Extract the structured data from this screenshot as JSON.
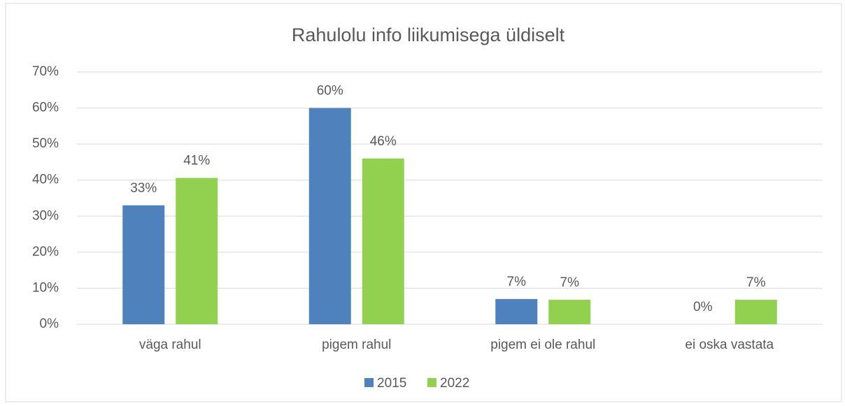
{
  "chart_data": {
    "type": "bar",
    "title": "Rahulolu info liikumisega üldiselt",
    "categories": [
      "väga rahul",
      "pigem rahul",
      "pigem ei ole rahul",
      "ei oska vastata"
    ],
    "series": [
      {
        "name": "2015",
        "color": "#4f81bd",
        "values": [
          33,
          60,
          7,
          0
        ],
        "value_labels": [
          "33%",
          "60%",
          "7%",
          "0%"
        ]
      },
      {
        "name": "2022",
        "color": "#92d050",
        "values": [
          40.6,
          46,
          6.8,
          6.8
        ],
        "value_labels": [
          "41%",
          "46%",
          "7%",
          "7%"
        ]
      }
    ],
    "ylim": [
      0,
      70
    ],
    "yticks": [
      {
        "value": 0,
        "label": "0%"
      },
      {
        "value": 10,
        "label": "10%"
      },
      {
        "value": 20,
        "label": "20%"
      },
      {
        "value": 30,
        "label": "30%"
      },
      {
        "value": 40,
        "label": "40%"
      },
      {
        "value": 50,
        "label": "50%"
      },
      {
        "value": 60,
        "label": "60%"
      },
      {
        "value": 70,
        "label": "70%"
      }
    ],
    "grid": true,
    "legend": "bottom"
  }
}
